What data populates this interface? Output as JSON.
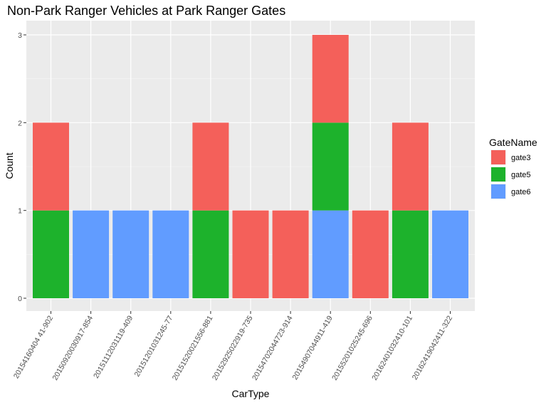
{
  "chart_data": {
    "type": "bar",
    "stacked": true,
    "title": "Non-Park Ranger Vehicles at Park Ranger Gates",
    "xlabel": "CarType",
    "ylabel": "Count",
    "ylim": [
      0,
      3.1
    ],
    "yticks": [
      "0",
      "1",
      "2",
      "3"
    ],
    "grid": true,
    "legend_position": "right",
    "legend_title": "GateName",
    "categories": [
      "20154160404 41-902",
      "20150920030917-854",
      "20151112031119-409",
      "20151201031245-77",
      "20151520021556-881",
      "20152925022919-735",
      "20154702044723-914",
      "20154907044911-419",
      "20155201025245-696",
      "20162401032410-101",
      "20162419042411-322"
    ],
    "series": [
      {
        "name": "gate6",
        "color": "#619CFF",
        "values": [
          0,
          1,
          1,
          1,
          0,
          0,
          0,
          1,
          0,
          0,
          1
        ]
      },
      {
        "name": "gate5",
        "color": "#1DB22C",
        "values": [
          1,
          0,
          0,
          0,
          1,
          0,
          0,
          1,
          0,
          1,
          0
        ]
      },
      {
        "name": "gate3",
        "color": "#F4605A",
        "values": [
          1,
          0,
          0,
          0,
          1,
          1,
          1,
          1,
          1,
          1,
          0
        ]
      }
    ],
    "legend_order": [
      "gate3",
      "gate5",
      "gate6"
    ]
  }
}
